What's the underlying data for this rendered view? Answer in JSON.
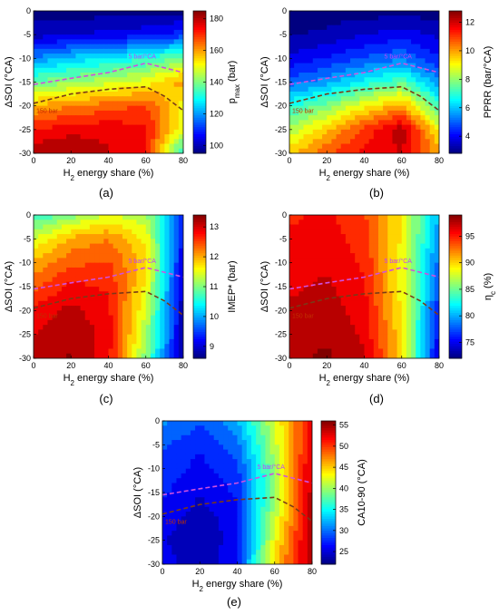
{
  "figure_panels": [
    "(a)",
    "(b)",
    "(c)",
    "(d)",
    "(e)"
  ],
  "chart_data": [
    {
      "id": "a",
      "type": "heatmap",
      "panel_label": "(a)",
      "xlabel": "H2 energy share (%)",
      "ylabel": "ΔSOI (°CA)",
      "xlim": [
        0,
        80
      ],
      "ylim": [
        -30,
        0
      ],
      "xticks": [
        0,
        20,
        40,
        60,
        80
      ],
      "yticks": [
        0,
        -5,
        -10,
        -15,
        -20,
        -25,
        -30
      ],
      "colorbar": {
        "label": "pmax (bar)",
        "min": 95,
        "max": 185,
        "ticks": [
          100,
          120,
          140,
          160,
          180
        ]
      },
      "field": {
        "x": [
          0,
          20,
          40,
          60,
          80
        ],
        "y": [
          0,
          -5,
          -10,
          -15,
          -20,
          -25,
          -30
        ],
        "z": [
          [
            95,
            95,
            95,
            95,
            96
          ],
          [
            100,
            102,
            104,
            106,
            110
          ],
          [
            118,
            124,
            128,
            132,
            140
          ],
          [
            138,
            142,
            146,
            150,
            160
          ],
          [
            158,
            162,
            165,
            168,
            150
          ],
          [
            172,
            176,
            176,
            174,
            148
          ],
          [
            182,
            182,
            178,
            172,
            130
          ]
        ]
      },
      "annotations": [
        {
          "text": "5 bar/°CA",
          "color": "#c040ff"
        },
        {
          "text": "150 bar",
          "color": "#c03000"
        }
      ],
      "contours": [
        {
          "label": "5 bar/°CA",
          "color": "#d050e0",
          "points": [
            [
              0,
              -15.5
            ],
            [
              20,
              -14.2
            ],
            [
              40,
              -13
            ],
            [
              60,
              -11
            ],
            [
              80,
              -13
            ]
          ]
        },
        {
          "label": "150 bar",
          "color": "#7a3a18",
          "points": [
            [
              0,
              -19.5
            ],
            [
              20,
              -17.5
            ],
            [
              40,
              -16.5
            ],
            [
              60,
              -16
            ],
            [
              70,
              -18
            ],
            [
              80,
              -21
            ]
          ]
        }
      ]
    },
    {
      "id": "b",
      "type": "heatmap",
      "panel_label": "(b)",
      "xlabel": "H2 energy share (%)",
      "ylabel": "ΔSOI (°CA)",
      "xlim": [
        0,
        80
      ],
      "ylim": [
        -30,
        0
      ],
      "xticks": [
        0,
        20,
        40,
        60,
        80
      ],
      "yticks": [
        0,
        -5,
        -10,
        -15,
        -20,
        -25,
        -30
      ],
      "colorbar": {
        "label": "PPRR (bar/°CA)",
        "min": 2.8,
        "max": 12.8,
        "ticks": [
          4,
          6,
          8,
          10,
          12
        ]
      },
      "field": {
        "x": [
          0,
          20,
          40,
          60,
          80
        ],
        "y": [
          0,
          -5,
          -10,
          -15,
          -20,
          -25,
          -30
        ],
        "z": [
          [
            2.8,
            2.8,
            2.8,
            2.8,
            2.8
          ],
          [
            3,
            3.2,
            3.6,
            4,
            3.5
          ],
          [
            3.8,
            4.2,
            4.8,
            5.2,
            4.2
          ],
          [
            5,
            5.6,
            6.6,
            7.4,
            5.4
          ],
          [
            6.8,
            7.8,
            9,
            10,
            7
          ],
          [
            8.2,
            9.6,
            11,
            12.3,
            9
          ],
          [
            9.6,
            10.8,
            11.6,
            12,
            10
          ]
        ]
      },
      "annotations": [
        {
          "text": "5 bar/°CA",
          "color": "#c040ff"
        },
        {
          "text": "150 bar",
          "color": "#c03000"
        }
      ],
      "contours": [
        {
          "label": "5 bar/°CA",
          "color": "#d050e0",
          "points": [
            [
              0,
              -15.5
            ],
            [
              20,
              -14.2
            ],
            [
              40,
              -13
            ],
            [
              60,
              -11
            ],
            [
              80,
              -13
            ]
          ]
        },
        {
          "label": "150 bar",
          "color": "#7a3a18",
          "points": [
            [
              0,
              -19.5
            ],
            [
              20,
              -17.5
            ],
            [
              40,
              -16.5
            ],
            [
              60,
              -16
            ],
            [
              70,
              -18
            ],
            [
              80,
              -21
            ]
          ]
        }
      ]
    },
    {
      "id": "c",
      "type": "heatmap",
      "panel_label": "(c)",
      "xlabel": "H2 energy share (%)",
      "ylabel": "ΔSOI (°CA)",
      "xlim": [
        0,
        80
      ],
      "ylim": [
        -30,
        0
      ],
      "xticks": [
        0,
        20,
        40,
        60,
        80
      ],
      "yticks": [
        0,
        -5,
        -10,
        -15,
        -20,
        -25,
        -30
      ],
      "colorbar": {
        "label": "IMEP* (bar)",
        "min": 8.6,
        "max": 13.4,
        "ticks": [
          9,
          10,
          11,
          12,
          13
        ]
      },
      "field": {
        "x": [
          0,
          20,
          40,
          60,
          80
        ],
        "y": [
          0,
          -5,
          -10,
          -15,
          -20,
          -25,
          -30
        ],
        "z": [
          [
            10.6,
            11,
            11.4,
            11.2,
            9.4
          ],
          [
            11.4,
            12,
            12.2,
            11.6,
            9.2
          ],
          [
            12,
            12.4,
            12.5,
            11.8,
            9
          ],
          [
            12.4,
            12.8,
            12.7,
            11.6,
            8.9
          ],
          [
            12.8,
            13.1,
            12.8,
            11.4,
            8.8
          ],
          [
            13,
            13.2,
            12.9,
            11.2,
            8.8
          ],
          [
            13.1,
            13.3,
            12.8,
            11,
            8.7
          ]
        ]
      },
      "annotations": [
        {
          "text": "5 bar/°CA",
          "color": "#c040ff"
        },
        {
          "text": "150 bar",
          "color": "#c03000"
        }
      ],
      "contours": [
        {
          "label": "5 bar/°CA",
          "color": "#d050e0",
          "points": [
            [
              0,
              -15.5
            ],
            [
              20,
              -14.2
            ],
            [
              40,
              -13
            ],
            [
              60,
              -11
            ],
            [
              80,
              -13
            ]
          ]
        },
        {
          "label": "150 bar",
          "color": "#7a3a18",
          "points": [
            [
              0,
              -19.5
            ],
            [
              20,
              -17.5
            ],
            [
              40,
              -16.5
            ],
            [
              60,
              -16
            ],
            [
              70,
              -18
            ],
            [
              80,
              -21
            ]
          ]
        }
      ]
    },
    {
      "id": "d",
      "type": "heatmap",
      "panel_label": "(d)",
      "xlabel": "H2 energy share (%)",
      "ylabel": "ΔSOI (°CA)",
      "xlim": [
        0,
        80
      ],
      "ylim": [
        -30,
        0
      ],
      "xticks": [
        0,
        20,
        40,
        60,
        80
      ],
      "yticks": [
        0,
        -5,
        -10,
        -15,
        -20,
        -25,
        -30
      ],
      "colorbar": {
        "label": "ηc (%)",
        "min": 72,
        "max": 99,
        "ticks": [
          75,
          80,
          85,
          90,
          95
        ]
      },
      "field": {
        "x": [
          0,
          20,
          40,
          60,
          80
        ],
        "y": [
          0,
          -5,
          -10,
          -15,
          -20,
          -25,
          -30
        ],
        "z": [
          [
            95,
            95.5,
            94,
            89,
            80
          ],
          [
            95.5,
            96,
            94.5,
            89,
            79
          ],
          [
            96,
            96.5,
            95,
            88.5,
            78
          ],
          [
            96.5,
            97,
            95.5,
            88.5,
            77
          ],
          [
            97,
            97.5,
            96,
            89,
            76
          ],
          [
            97.5,
            98,
            96.5,
            89.5,
            75
          ],
          [
            98,
            98.5,
            97,
            90,
            74
          ]
        ]
      },
      "annotations": [
        {
          "text": "5 bar/°CA",
          "color": "#c040ff"
        },
        {
          "text": "150 bar",
          "color": "#c03000"
        }
      ],
      "contours": [
        {
          "label": "5 bar/°CA",
          "color": "#d050e0",
          "points": [
            [
              0,
              -15.5
            ],
            [
              20,
              -14.2
            ],
            [
              40,
              -13
            ],
            [
              60,
              -11
            ],
            [
              80,
              -13
            ]
          ]
        },
        {
          "label": "150 bar",
          "color": "#7a3a18",
          "points": [
            [
              0,
              -19.5
            ],
            [
              20,
              -17.5
            ],
            [
              40,
              -16.5
            ],
            [
              60,
              -16
            ],
            [
              70,
              -18
            ],
            [
              80,
              -21
            ]
          ]
        }
      ]
    },
    {
      "id": "e",
      "type": "heatmap",
      "panel_label": "(e)",
      "xlabel": "H2 energy share (%)",
      "ylabel": "ΔSOI (°CA)",
      "xlim": [
        0,
        80
      ],
      "ylim": [
        -30,
        0
      ],
      "xticks": [
        0,
        20,
        40,
        60,
        80
      ],
      "yticks": [
        0,
        -5,
        -10,
        -15,
        -20,
        -25,
        -30
      ],
      "colorbar": {
        "label": "CA10-90 (°CA)",
        "min": 22,
        "max": 56,
        "ticks": [
          25,
          30,
          35,
          40,
          45,
          50,
          55
        ]
      },
      "field": {
        "x": [
          0,
          20,
          40,
          60,
          80
        ],
        "y": [
          0,
          -5,
          -10,
          -15,
          -20,
          -25,
          -30
        ],
        "z": [
          [
            31,
            29,
            32,
            42,
            52
          ],
          [
            29,
            27,
            30,
            41,
            53
          ],
          [
            28,
            26,
            28,
            40,
            54
          ],
          [
            27,
            25,
            27,
            40,
            54
          ],
          [
            26,
            24,
            26,
            41,
            55
          ],
          [
            25,
            23,
            26,
            43,
            55
          ],
          [
            26,
            23,
            27,
            45,
            55
          ]
        ]
      },
      "annotations": [
        {
          "text": "5 bar/°CA",
          "color": "#c040ff"
        },
        {
          "text": "150 bar",
          "color": "#c03000"
        }
      ],
      "contours": [
        {
          "label": "5 bar/°CA",
          "color": "#d050e0",
          "points": [
            [
              0,
              -15.5
            ],
            [
              20,
              -14.2
            ],
            [
              40,
              -13
            ],
            [
              60,
              -11
            ],
            [
              80,
              -13
            ]
          ]
        },
        {
          "label": "150 bar",
          "color": "#7a3a18",
          "points": [
            [
              0,
              -19.5
            ],
            [
              20,
              -17.5
            ],
            [
              40,
              -16.5
            ],
            [
              60,
              -16
            ],
            [
              70,
              -18
            ],
            [
              80,
              -21
            ]
          ]
        }
      ]
    }
  ]
}
